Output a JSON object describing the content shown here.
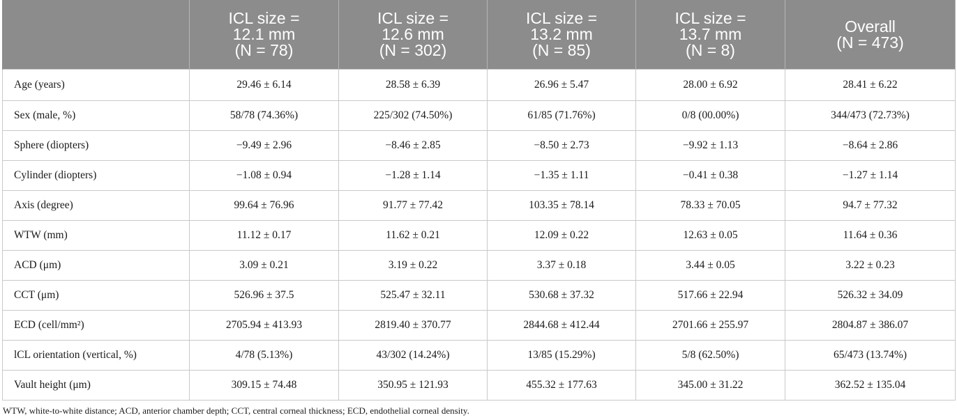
{
  "table": {
    "header": [
      {
        "lines": [
          "",
          "",
          ""
        ]
      },
      {
        "lines": [
          "ICL size =",
          "12.1 mm",
          "(N = 78)"
        ]
      },
      {
        "lines": [
          "ICL size =",
          "12.6 mm",
          "(N = 302)"
        ]
      },
      {
        "lines": [
          "ICL size =",
          "13.2 mm",
          "(N = 85)"
        ]
      },
      {
        "lines": [
          "ICL size =",
          "13.7 mm",
          "(N = 8)"
        ]
      },
      {
        "lines": [
          "Overall",
          "(N =  473)",
          ""
        ]
      }
    ],
    "rows": [
      {
        "label": "Age (years)",
        "cells": [
          "29.46 ± 6.14",
          "28.58 ± 6.39",
          "26.96 ± 5.47",
          "28.00 ± 6.92",
          "28.41 ± 6.22"
        ]
      },
      {
        "label": "Sex (male, %)",
        "cells": [
          "58/78 (74.36%)",
          "225/302 (74.50%)",
          "61/85 (71.76%)",
          "0/8 (00.00%)",
          "344/473 (72.73%)"
        ]
      },
      {
        "label": "Sphere (diopters)",
        "cells": [
          "−9.49 ± 2.96",
          "−8.46 ± 2.85",
          "−8.50 ± 2.73",
          "−9.92 ± 1.13",
          "−8.64 ± 2.86"
        ]
      },
      {
        "label": "Cylinder (diopters)",
        "cells": [
          "−1.08 ± 0.94",
          "−1.28 ± 1.14",
          "−1.35 ± 1.11",
          "−0.41 ± 0.38",
          "−1.27 ± 1.14"
        ]
      },
      {
        "label": "Axis (degree)",
        "cells": [
          "99.64 ± 76.96",
          "91.77 ± 77.42",
          "103.35 ± 78.14",
          "78.33 ± 70.05",
          "94.7 ± 77.32"
        ]
      },
      {
        "label": "WTW (mm)",
        "cells": [
          "11.12 ± 0.17",
          "11.62 ± 0.21",
          "12.09 ± 0.22",
          "12.63 ± 0.05",
          "11.64 ± 0.36"
        ]
      },
      {
        "label": "ACD (μm)",
        "cells": [
          "3.09 ± 0.21",
          "3.19 ± 0.22",
          "3.37 ± 0.18",
          "3.44 ± 0.05",
          "3.22 ± 0.23"
        ]
      },
      {
        "label": "CCT (μm)",
        "cells": [
          "526.96 ± 37.5",
          "525.47 ± 32.11",
          "530.68 ± 37.32",
          "517.66 ± 22.94",
          "526.32 ± 34.09"
        ]
      },
      {
        "label": "ECD (cell/mm²)",
        "cells": [
          "2705.94 ± 413.93",
          "2819.40 ± 370.77",
          "2844.68 ± 412.44",
          "2701.66 ± 255.97",
          "2804.87 ± 386.07"
        ]
      },
      {
        "label": "lCL orientation (vertical, %)",
        "cells": [
          "4/78 (5.13%)",
          "43/302 (14.24%)",
          "13/85 (15.29%)",
          "5/8 (62.50%)",
          "65/473 (13.74%)"
        ]
      },
      {
        "label": "Vault height (μm)",
        "cells": [
          "309.15 ± 74.48",
          "350.95 ± 121.93",
          "455.32 ± 177.63",
          "345.00 ± 31.22",
          "362.52 ± 135.04"
        ]
      }
    ]
  },
  "footnote": "WTW, white-to-white distance; ACD, anterior chamber depth; CCT, central corneal thickness; ECD, endothelial corneal density."
}
